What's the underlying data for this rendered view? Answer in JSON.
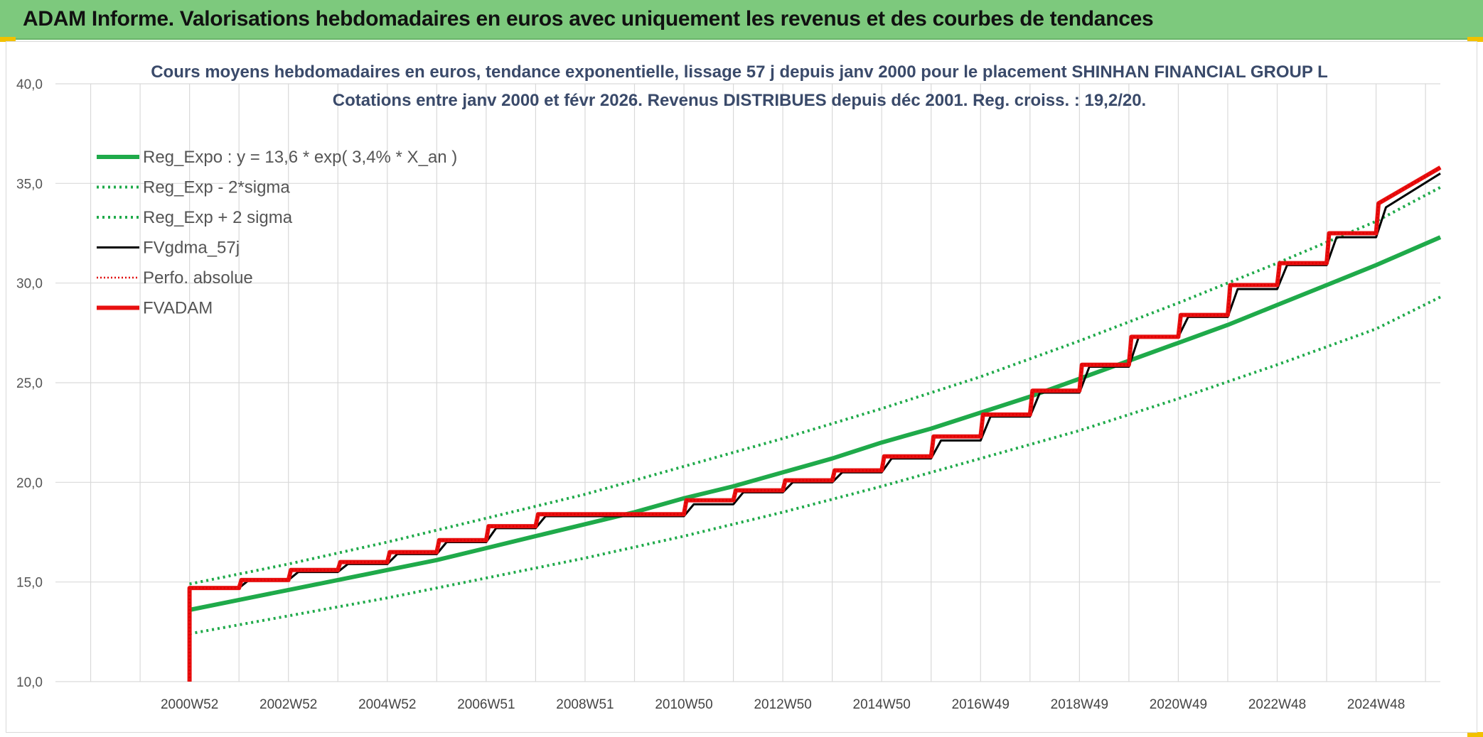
{
  "banner": {
    "title": "ADAM Informe. Valorisations hebdomadaires en euros avec uniquement les revenus et des courbes de tendances"
  },
  "colors": {
    "banner_bg": "#7dc97d",
    "regression": "#1faa4a",
    "band": "#1faa4a",
    "fvgdma": "#000000",
    "perfo": "#e00000",
    "fvadam": "#e81010",
    "grid": "#d9d9d9"
  },
  "chart_data": {
    "type": "line",
    "title": "Cours moyens hebdomadaires en euros, tendance exponentielle, lissage 57 j depuis janv 2000 pour le placement SHINHAN FINANCIAL GROUP L",
    "subtitle": "Cotations entre janv 2000 et févr 2026. Revenus DISTRIBUES depuis déc 2001. Reg. croiss. : 19,2/20.",
    "xlabel": "",
    "ylabel": "",
    "ylim": [
      10,
      40
    ],
    "yticks": [
      "10,0",
      "15,0",
      "20,0",
      "25,0",
      "30,0",
      "35,0",
      "40,0"
    ],
    "xlim": [
      1998,
      2026.3
    ],
    "xticks": [
      {
        "label": "2000W52",
        "x": 2001
      },
      {
        "label": "2002W52",
        "x": 2003
      },
      {
        "label": "2004W52",
        "x": 2005
      },
      {
        "label": "2006W51",
        "x": 2007
      },
      {
        "label": "2008W51",
        "x": 2009
      },
      {
        "label": "2010W50",
        "x": 2011
      },
      {
        "label": "2012W50",
        "x": 2013
      },
      {
        "label": "2014W50",
        "x": 2015
      },
      {
        "label": "2016W49",
        "x": 2017
      },
      {
        "label": "2018W49",
        "x": 2019
      },
      {
        "label": "2020W49",
        "x": 2021
      },
      {
        "label": "2022W48",
        "x": 2023
      },
      {
        "label": "2024W48",
        "x": 2025
      }
    ],
    "grid": true,
    "legend_position": "top-left",
    "series": [
      {
        "name": "Reg_Expo : y = 13,6 * exp( 3,4% *  X_an )",
        "style": "solid-thick",
        "color": "#1faa4a",
        "x": [
          2001,
          2002,
          2003,
          2004,
          2005,
          2006,
          2007,
          2008,
          2009,
          2010,
          2011,
          2012,
          2013,
          2014,
          2015,
          2016,
          2017,
          2018,
          2019,
          2020,
          2021,
          2022,
          2023,
          2024,
          2025,
          2026.3
        ],
        "y": [
          13.6,
          14.1,
          14.6,
          15.1,
          15.6,
          16.1,
          16.7,
          17.3,
          17.9,
          18.5,
          19.2,
          19.8,
          20.5,
          21.2,
          22.0,
          22.7,
          23.5,
          24.3,
          25.2,
          26.1,
          27.0,
          27.9,
          28.9,
          29.9,
          30.9,
          32.3
        ]
      },
      {
        "name": "Reg_Exp - 2*sigma",
        "style": "dotted",
        "color": "#1faa4a",
        "x": [
          2001,
          2003,
          2005,
          2007,
          2009,
          2011,
          2013,
          2015,
          2017,
          2019,
          2021,
          2023,
          2025,
          2026.3
        ],
        "y": [
          12.4,
          13.3,
          14.2,
          15.2,
          16.2,
          17.3,
          18.5,
          19.8,
          21.2,
          22.6,
          24.2,
          25.9,
          27.7,
          29.3
        ]
      },
      {
        "name": "Reg_Exp + 2 sigma",
        "style": "dotted",
        "color": "#1faa4a",
        "x": [
          2001,
          2003,
          2005,
          2007,
          2009,
          2011,
          2013,
          2015,
          2017,
          2019,
          2021,
          2023,
          2025,
          2026.3
        ],
        "y": [
          14.9,
          15.9,
          17.0,
          18.2,
          19.4,
          20.8,
          22.2,
          23.7,
          25.3,
          27.1,
          29.0,
          31.0,
          33.1,
          34.8
        ]
      },
      {
        "name": "FVgdma_57j",
        "style": "solid",
        "color": "#000000",
        "x": [
          2001,
          2002,
          2002.2,
          2003,
          2003.2,
          2004,
          2004.2,
          2005,
          2005.2,
          2006,
          2006.2,
          2007,
          2007.2,
          2008,
          2008.2,
          2011,
          2011.2,
          2012,
          2012.2,
          2013,
          2013.2,
          2014,
          2014.2,
          2015,
          2015.2,
          2016,
          2016.2,
          2017,
          2017.2,
          2018,
          2018.2,
          2019,
          2019.2,
          2020,
          2020.2,
          2021,
          2021.2,
          2022,
          2022.2,
          2023,
          2023.2,
          2024,
          2024.2,
          2025,
          2025.2,
          2026.3
        ],
        "y": [
          14.7,
          14.7,
          15.1,
          15.1,
          15.5,
          15.5,
          15.9,
          15.9,
          16.4,
          16.4,
          17.0,
          17.0,
          17.7,
          17.7,
          18.3,
          18.3,
          18.9,
          18.9,
          19.5,
          19.5,
          20.0,
          20.0,
          20.5,
          20.5,
          21.2,
          21.2,
          22.1,
          22.1,
          23.3,
          23.3,
          24.5,
          24.5,
          25.8,
          25.8,
          27.3,
          27.3,
          28.3,
          28.3,
          29.7,
          29.7,
          30.9,
          30.9,
          32.3,
          32.3,
          33.8,
          35.5
        ]
      },
      {
        "name": "Perfo. absolue",
        "style": "dotted",
        "color": "#e00000",
        "x": [
          2001,
          2001,
          2002,
          2002.05,
          2003,
          2003.05,
          2004,
          2004.05,
          2005,
          2005.05,
          2006,
          2006.05,
          2007,
          2007.05,
          2008,
          2008.05,
          2011,
          2011.05,
          2012,
          2012.05,
          2013,
          2013.05,
          2014,
          2014.05,
          2015,
          2015.05,
          2016,
          2016.05,
          2017,
          2017.05,
          2018,
          2018.05,
          2019,
          2019.05,
          2020,
          2020.05,
          2021,
          2021.05,
          2022,
          2022.05,
          2023,
          2023.05,
          2024,
          2024.05,
          2025,
          2025.05,
          2026.3
        ],
        "y": [
          10.0,
          14.7,
          14.7,
          15.1,
          15.1,
          15.6,
          15.6,
          16.0,
          16.0,
          16.5,
          16.5,
          17.1,
          17.1,
          17.8,
          17.8,
          18.4,
          18.4,
          19.1,
          19.1,
          19.6,
          19.6,
          20.1,
          20.1,
          20.6,
          20.6,
          21.3,
          21.3,
          22.3,
          22.3,
          23.4,
          23.4,
          24.6,
          24.6,
          25.9,
          25.9,
          27.3,
          27.3,
          28.4,
          28.4,
          29.9,
          29.9,
          31.0,
          31.0,
          32.5,
          32.5,
          34.0,
          35.8
        ]
      },
      {
        "name": "FVADAM",
        "style": "solid-thick",
        "color": "#e81010",
        "x": [
          2001,
          2001,
          2002,
          2002.05,
          2003,
          2003.05,
          2004,
          2004.05,
          2005,
          2005.05,
          2006,
          2006.05,
          2007,
          2007.05,
          2008,
          2008.05,
          2011,
          2011.05,
          2012,
          2012.05,
          2013,
          2013.05,
          2014,
          2014.05,
          2015,
          2015.05,
          2016,
          2016.05,
          2017,
          2017.05,
          2018,
          2018.05,
          2019,
          2019.05,
          2020,
          2020.05,
          2021,
          2021.05,
          2022,
          2022.05,
          2023,
          2023.05,
          2024,
          2024.05,
          2025,
          2025.05,
          2026.3
        ],
        "y": [
          10.0,
          14.7,
          14.7,
          15.1,
          15.1,
          15.6,
          15.6,
          16.0,
          16.0,
          16.5,
          16.5,
          17.1,
          17.1,
          17.8,
          17.8,
          18.4,
          18.4,
          19.1,
          19.1,
          19.6,
          19.6,
          20.1,
          20.1,
          20.6,
          20.6,
          21.3,
          21.3,
          22.3,
          22.3,
          23.4,
          23.4,
          24.6,
          24.6,
          25.9,
          25.9,
          27.3,
          27.3,
          28.4,
          28.4,
          29.9,
          29.9,
          31.0,
          31.0,
          32.5,
          32.5,
          34.0,
          35.8
        ]
      }
    ]
  }
}
